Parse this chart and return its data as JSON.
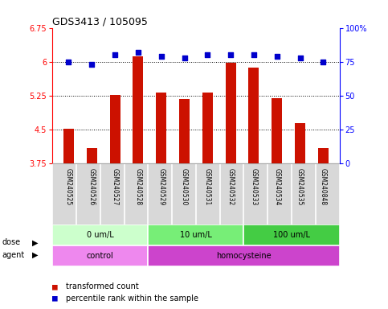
{
  "title": "GDS3413 / 105095",
  "samples": [
    "GSM240525",
    "GSM240526",
    "GSM240527",
    "GSM240528",
    "GSM240529",
    "GSM240530",
    "GSM240531",
    "GSM240532",
    "GSM240533",
    "GSM240534",
    "GSM240535",
    "GSM240848"
  ],
  "red_values": [
    4.52,
    4.1,
    5.27,
    6.12,
    5.32,
    5.18,
    5.32,
    5.97,
    5.87,
    5.2,
    4.65,
    4.1
  ],
  "blue_values": [
    75,
    73,
    80,
    82,
    79,
    78,
    80,
    80,
    80,
    79,
    78,
    75
  ],
  "ylim_left": [
    3.75,
    6.75
  ],
  "ylim_right": [
    0,
    100
  ],
  "yticks_left": [
    3.75,
    4.5,
    5.25,
    6.0,
    6.75
  ],
  "yticks_left_labels": [
    "3.75",
    "4.5",
    "5.25",
    "6",
    "6.75"
  ],
  "yticks_right": [
    0,
    25,
    50,
    75,
    100
  ],
  "yticks_right_labels": [
    "0",
    "25",
    "50",
    "75",
    "100%"
  ],
  "hlines": [
    6.0,
    5.25,
    4.5
  ],
  "dose_groups": [
    {
      "label": "0 um/L",
      "start": 0,
      "end": 4,
      "color": "#ccffcc"
    },
    {
      "label": "10 um/L",
      "start": 4,
      "end": 8,
      "color": "#77ee77"
    },
    {
      "label": "100 um/L",
      "start": 8,
      "end": 12,
      "color": "#44cc44"
    }
  ],
  "agent_groups": [
    {
      "label": "control",
      "start": 0,
      "end": 4,
      "color": "#ee88ee"
    },
    {
      "label": "homocysteine",
      "start": 4,
      "end": 12,
      "color": "#cc44cc"
    }
  ],
  "bar_color": "#cc1100",
  "dot_color": "#0000cc",
  "legend_red": "transformed count",
  "legend_blue": "percentile rank within the sample",
  "background_color": "#ffffff",
  "plot_bg_color": "#ffffff",
  "sample_bg_color": "#d8d8d8",
  "cell_border_color": "#aaaaaa"
}
